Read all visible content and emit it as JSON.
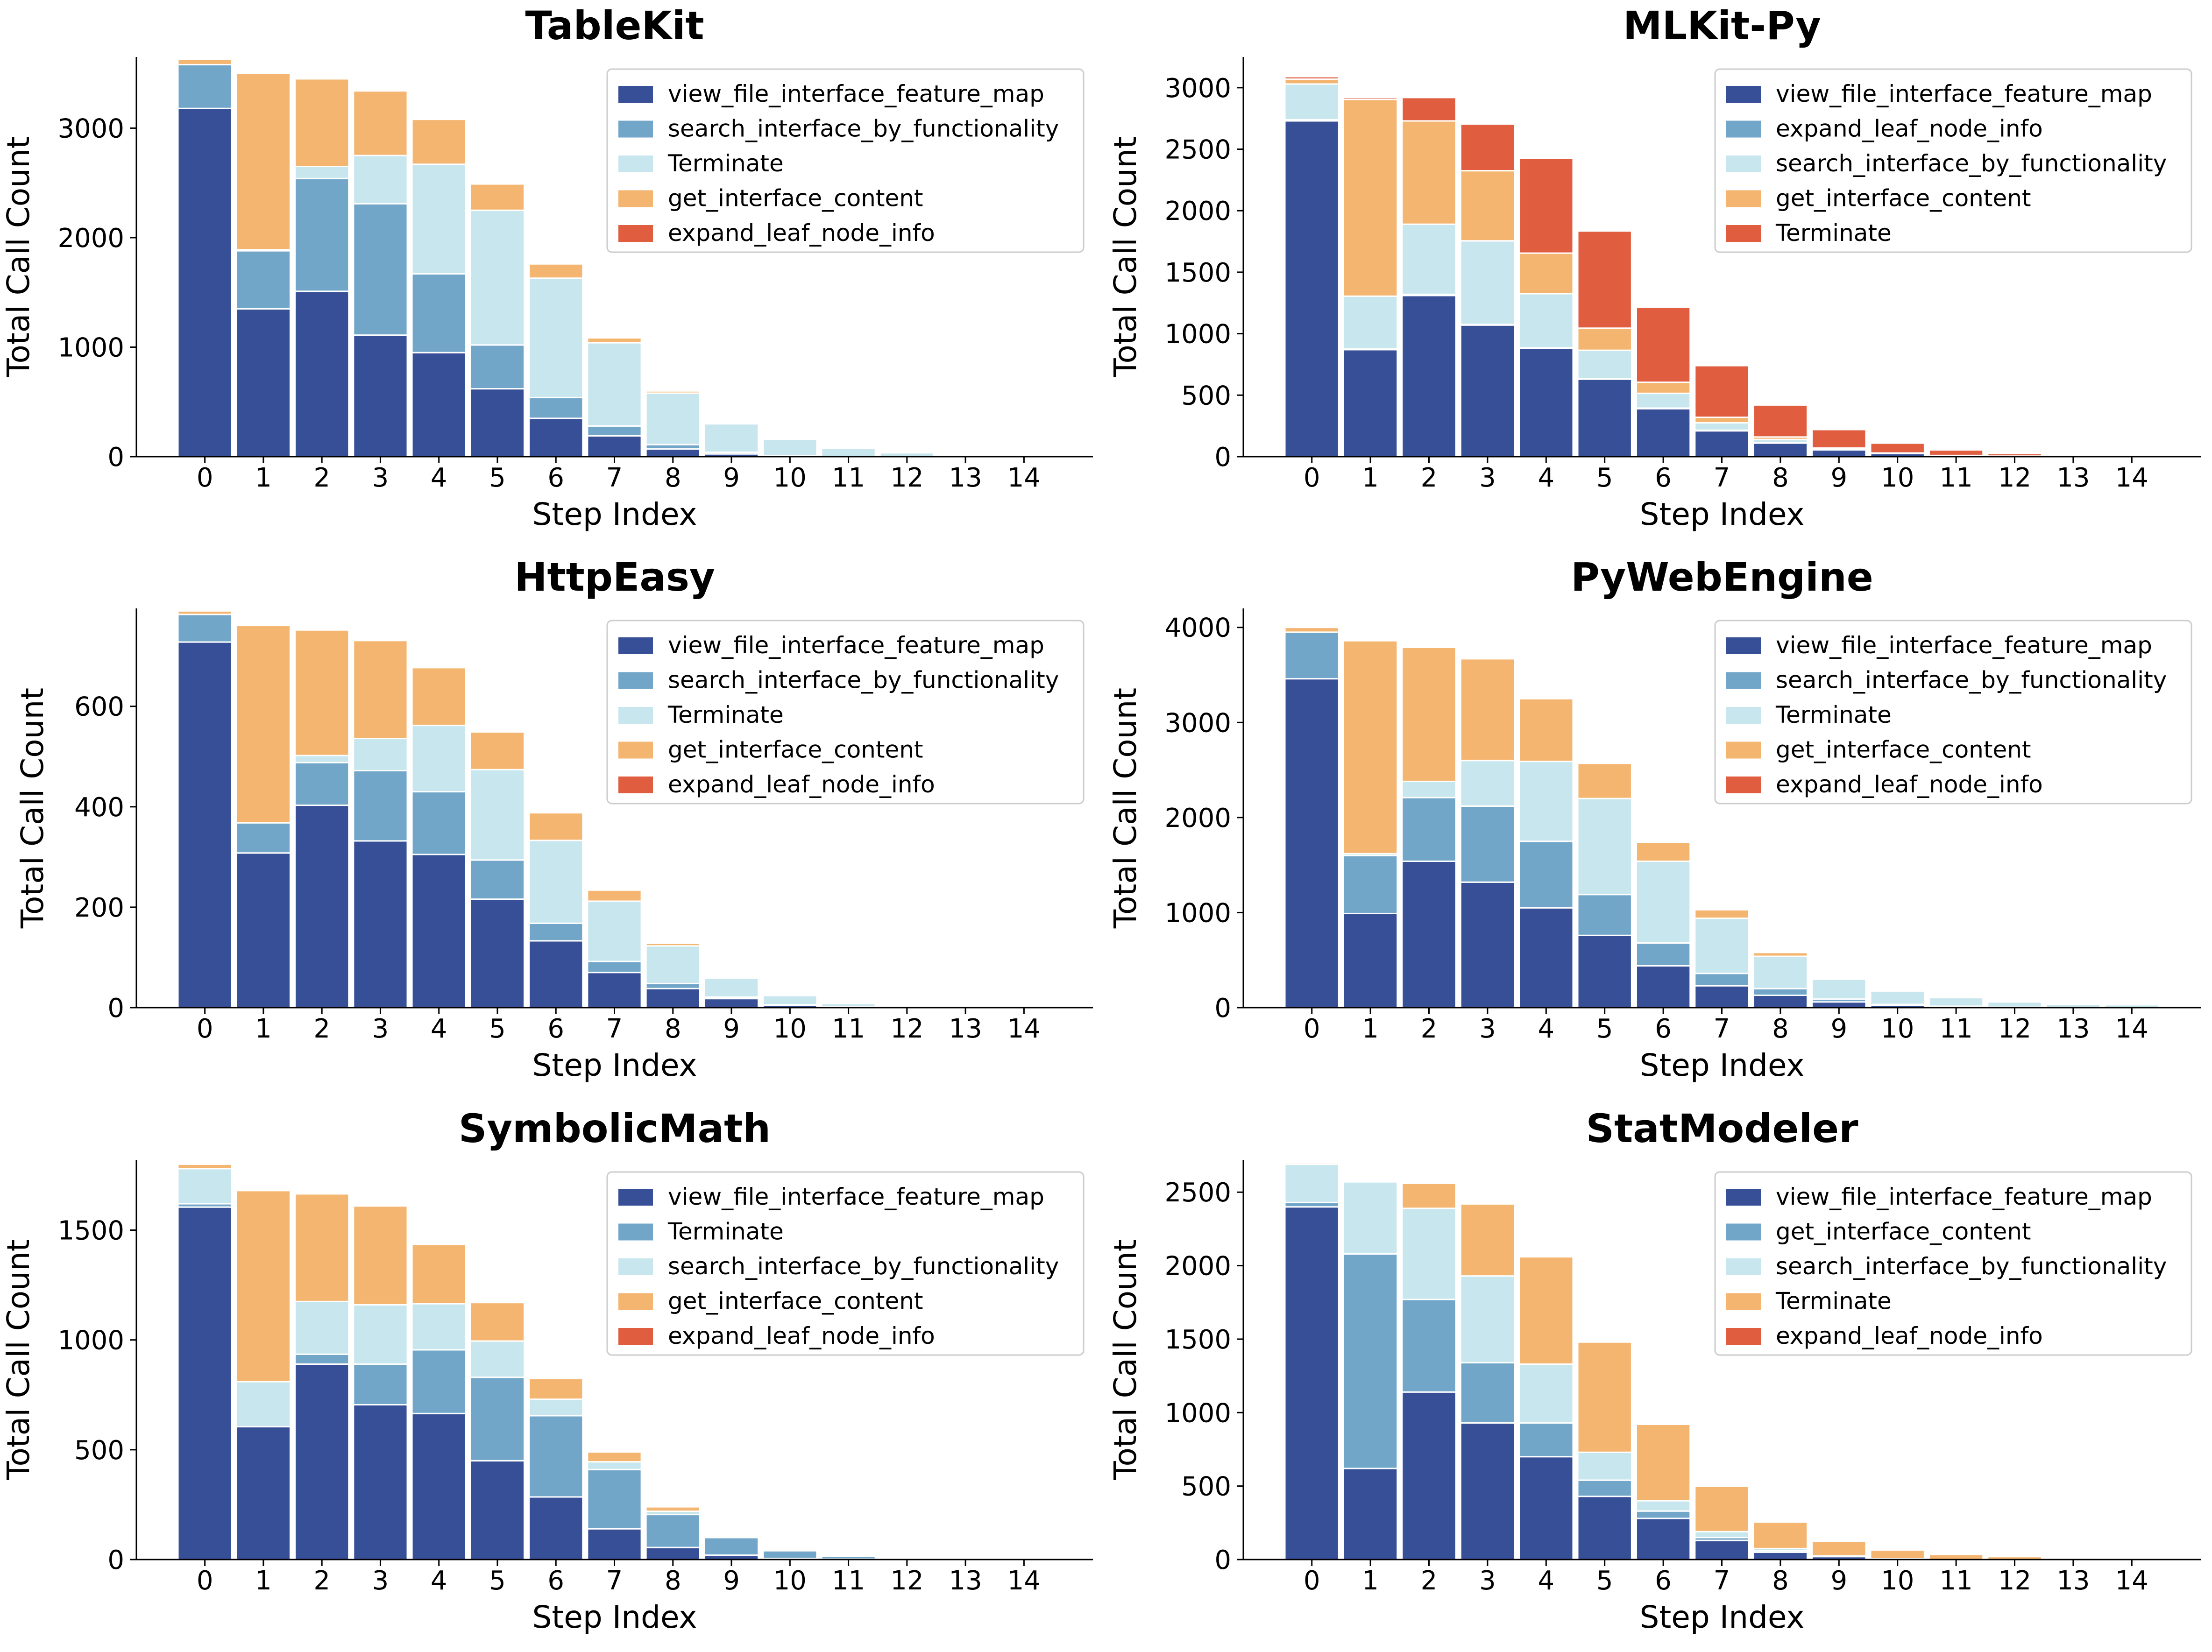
{
  "colors": {
    "view_file_interface_feature_map": "#374f96",
    "search_interface_by_functionality": "#72a6c9",
    "expand_leaf_node_info": "#72a6c9",
    "Terminate": "#c8e6ed",
    "get_interface_content": "#f4b570",
    "expand_leaf_node_info_red": "#e05d40"
  },
  "chart_data": [
    {
      "type": "bar",
      "stacked": true,
      "title": "TableKit",
      "xlabel": "Step Index",
      "ylabel": "Total Call Count",
      "categories": [
        "0",
        "1",
        "2",
        "3",
        "4",
        "5",
        "6",
        "7",
        "8",
        "9",
        "10",
        "11",
        "12",
        "13",
        "14"
      ],
      "ylim": [
        0,
        3650
      ],
      "yticks": [
        0,
        1000,
        2000,
        3000
      ],
      "legend_position": "upper right",
      "series": [
        {
          "name": "view_file_interface_feature_map",
          "color": "#374f96",
          "values": [
            3180,
            1350,
            1510,
            1110,
            950,
            620,
            350,
            190,
            70,
            25,
            5,
            0,
            0,
            0,
            0
          ]
        },
        {
          "name": "search_interface_by_functionality",
          "color": "#72a6c9",
          "values": [
            400,
            530,
            1030,
            1200,
            720,
            400,
            190,
            90,
            40,
            15,
            5,
            0,
            0,
            0,
            0
          ]
        },
        {
          "name": "Terminate",
          "color": "#c8e6ed",
          "values": [
            0,
            10,
            110,
            440,
            1000,
            1230,
            1090,
            760,
            470,
            260,
            150,
            75,
            35,
            15,
            5
          ]
        },
        {
          "name": "get_interface_content",
          "color": "#f4b570",
          "values": [
            50,
            1610,
            800,
            590,
            410,
            240,
            130,
            45,
            20,
            5,
            0,
            0,
            0,
            0,
            0
          ]
        },
        {
          "name": "expand_leaf_node_info",
          "color": "#e05d40",
          "values": [
            0,
            0,
            0,
            0,
            0,
            0,
            0,
            0,
            0,
            0,
            0,
            0,
            0,
            0,
            0
          ]
        }
      ]
    },
    {
      "type": "bar",
      "stacked": true,
      "title": "MLKit-Py",
      "xlabel": "Step Index",
      "ylabel": "Total Call Count",
      "categories": [
        "0",
        "1",
        "2",
        "3",
        "4",
        "5",
        "6",
        "7",
        "8",
        "9",
        "10",
        "11",
        "12",
        "13",
        "14"
      ],
      "ylim": [
        0,
        3250
      ],
      "yticks": [
        0,
        500,
        1000,
        1500,
        2000,
        2500,
        3000
      ],
      "legend_position": "upper right",
      "series": [
        {
          "name": "view_file_interface_feature_map",
          "color": "#374f96",
          "values": [
            2730,
            870,
            1310,
            1070,
            880,
            630,
            390,
            210,
            110,
            55,
            25,
            10,
            5,
            0,
            0
          ]
        },
        {
          "name": "expand_leaf_node_info",
          "color": "#72a6c9",
          "values": [
            10,
            5,
            10,
            5,
            5,
            5,
            5,
            5,
            5,
            0,
            0,
            0,
            0,
            0,
            0
          ]
        },
        {
          "name": "search_interface_by_functionality",
          "color": "#c8e6ed",
          "values": [
            290,
            430,
            570,
            680,
            440,
            230,
            120,
            60,
            25,
            10,
            5,
            0,
            0,
            0,
            0
          ]
        },
        {
          "name": "get_interface_content",
          "color": "#f4b570",
          "values": [
            40,
            1600,
            840,
            570,
            330,
            180,
            90,
            45,
            20,
            5,
            0,
            0,
            0,
            0,
            0
          ]
        },
        {
          "name": "Terminate",
          "color": "#e05d40",
          "values": [
            20,
            15,
            190,
            380,
            770,
            790,
            610,
            420,
            260,
            150,
            80,
            45,
            20,
            10,
            5
          ]
        }
      ]
    },
    {
      "type": "bar",
      "stacked": true,
      "title": "HttpEasy",
      "xlabel": "Step Index",
      "ylabel": "Total Call Count",
      "categories": [
        "0",
        "1",
        "2",
        "3",
        "4",
        "5",
        "6",
        "7",
        "8",
        "9",
        "10",
        "11",
        "12",
        "13",
        "14"
      ],
      "ylim": [
        0,
        795
      ],
      "yticks": [
        0,
        200,
        400,
        600
      ],
      "legend_position": "upper right",
      "series": [
        {
          "name": "view_file_interface_feature_map",
          "color": "#374f96",
          "values": [
            728,
            308,
            403,
            332,
            305,
            216,
            133,
            70,
            38,
            18,
            5,
            2,
            1,
            0,
            0
          ]
        },
        {
          "name": "search_interface_by_functionality",
          "color": "#72a6c9",
          "values": [
            55,
            60,
            85,
            140,
            125,
            78,
            35,
            22,
            10,
            3,
            1,
            0,
            0,
            0,
            0
          ]
        },
        {
          "name": "Terminate",
          "color": "#c8e6ed",
          "values": [
            0,
            0,
            14,
            64,
            132,
            180,
            165,
            120,
            75,
            38,
            18,
            6,
            2,
            1,
            0
          ]
        },
        {
          "name": "get_interface_content",
          "color": "#f4b570",
          "values": [
            7,
            393,
            250,
            195,
            115,
            75,
            55,
            22,
            5,
            0,
            0,
            0,
            0,
            0,
            0
          ]
        },
        {
          "name": "expand_leaf_node_info",
          "color": "#e05d40",
          "values": [
            0,
            0,
            0,
            0,
            0,
            0,
            0,
            0,
            0,
            0,
            0,
            0,
            0,
            0,
            0
          ]
        }
      ]
    },
    {
      "type": "bar",
      "stacked": true,
      "title": "PyWebEngine",
      "xlabel": "Step Index",
      "ylabel": "Total Call Count",
      "categories": [
        "0",
        "1",
        "2",
        "3",
        "4",
        "5",
        "6",
        "7",
        "8",
        "9",
        "10",
        "11",
        "12",
        "13",
        "14"
      ],
      "ylim": [
        0,
        4200
      ],
      "yticks": [
        0,
        1000,
        2000,
        3000,
        4000
      ],
      "legend_position": "upper right",
      "series": [
        {
          "name": "view_file_interface_feature_map",
          "color": "#374f96",
          "values": [
            3460,
            990,
            1540,
            1320,
            1050,
            760,
            440,
            230,
            130,
            60,
            25,
            10,
            5,
            0,
            0
          ]
        },
        {
          "name": "search_interface_by_functionality",
          "color": "#72a6c9",
          "values": [
            490,
            610,
            670,
            800,
            700,
            430,
            240,
            130,
            70,
            30,
            10,
            5,
            0,
            0,
            0
          ]
        },
        {
          "name": "Terminate",
          "color": "#c8e6ed",
          "values": [
            0,
            20,
            170,
            480,
            840,
            1010,
            860,
            580,
            340,
            210,
            140,
            90,
            55,
            35,
            30
          ]
        },
        {
          "name": "get_interface_content",
          "color": "#f4b570",
          "values": [
            50,
            2240,
            1410,
            1070,
            660,
            370,
            200,
            90,
            40,
            10,
            0,
            0,
            0,
            0,
            0
          ]
        },
        {
          "name": "expand_leaf_node_info",
          "color": "#e05d40",
          "values": [
            0,
            0,
            0,
            0,
            0,
            0,
            0,
            0,
            0,
            0,
            0,
            0,
            0,
            0,
            0
          ]
        }
      ]
    },
    {
      "type": "bar",
      "stacked": true,
      "title": "SymbolicMath",
      "xlabel": "Step Index",
      "ylabel": "Total Call Count",
      "categories": [
        "0",
        "1",
        "2",
        "3",
        "4",
        "5",
        "6",
        "7",
        "8",
        "9",
        "10",
        "11",
        "12",
        "13",
        "14"
      ],
      "ylim": [
        0,
        1820
      ],
      "yticks": [
        0,
        500,
        1000,
        1500
      ],
      "legend_position": "upper right",
      "series": [
        {
          "name": "view_file_interface_feature_map",
          "color": "#374f96",
          "values": [
            1605,
            605,
            890,
            705,
            665,
            450,
            285,
            140,
            55,
            20,
            5,
            2,
            0,
            0,
            0
          ]
        },
        {
          "name": "Terminate",
          "color": "#72a6c9",
          "values": [
            15,
            0,
            45,
            185,
            290,
            380,
            370,
            270,
            150,
            80,
            35,
            12,
            5,
            2,
            0
          ]
        },
        {
          "name": "search_interface_by_functionality",
          "color": "#c8e6ed",
          "values": [
            160,
            205,
            240,
            270,
            210,
            165,
            75,
            35,
            15,
            5,
            0,
            0,
            0,
            0,
            0
          ]
        },
        {
          "name": "get_interface_content",
          "color": "#f4b570",
          "values": [
            20,
            870,
            490,
            450,
            270,
            175,
            95,
            45,
            20,
            5,
            0,
            0,
            0,
            0,
            0
          ]
        },
        {
          "name": "expand_leaf_node_info",
          "color": "#e05d40",
          "values": [
            0,
            0,
            0,
            0,
            0,
            0,
            0,
            0,
            0,
            0,
            0,
            0,
            0,
            0,
            0
          ]
        }
      ]
    },
    {
      "type": "bar",
      "stacked": true,
      "title": "StatModeler",
      "xlabel": "Step Index",
      "ylabel": "Total Call Count",
      "categories": [
        "0",
        "1",
        "2",
        "3",
        "4",
        "5",
        "6",
        "7",
        "8",
        "9",
        "10",
        "11",
        "12",
        "13",
        "14"
      ],
      "ylim": [
        0,
        2720
      ],
      "yticks": [
        0,
        500,
        1000,
        1500,
        2000,
        2500
      ],
      "legend_position": "upper right",
      "series": [
        {
          "name": "view_file_interface_feature_map",
          "color": "#374f96",
          "values": [
            2400,
            620,
            1140,
            930,
            700,
            430,
            280,
            130,
            50,
            20,
            5,
            0,
            0,
            0,
            0
          ]
        },
        {
          "name": "get_interface_content",
          "color": "#72a6c9",
          "values": [
            30,
            1460,
            630,
            410,
            230,
            110,
            50,
            20,
            10,
            0,
            0,
            0,
            0,
            0,
            0
          ]
        },
        {
          "name": "search_interface_by_functionality",
          "color": "#c8e6ed",
          "values": [
            260,
            490,
            620,
            590,
            400,
            190,
            70,
            40,
            15,
            5,
            0,
            0,
            0,
            0,
            0
          ]
        },
        {
          "name": "Terminate",
          "color": "#f4b570",
          "values": [
            10,
            0,
            170,
            490,
            730,
            750,
            520,
            310,
            180,
            100,
            60,
            35,
            20,
            10,
            5
          ]
        },
        {
          "name": "expand_leaf_node_info",
          "color": "#e05d40",
          "values": [
            0,
            0,
            0,
            0,
            0,
            0,
            0,
            0,
            0,
            0,
            0,
            0,
            0,
            0,
            0
          ]
        }
      ]
    }
  ]
}
